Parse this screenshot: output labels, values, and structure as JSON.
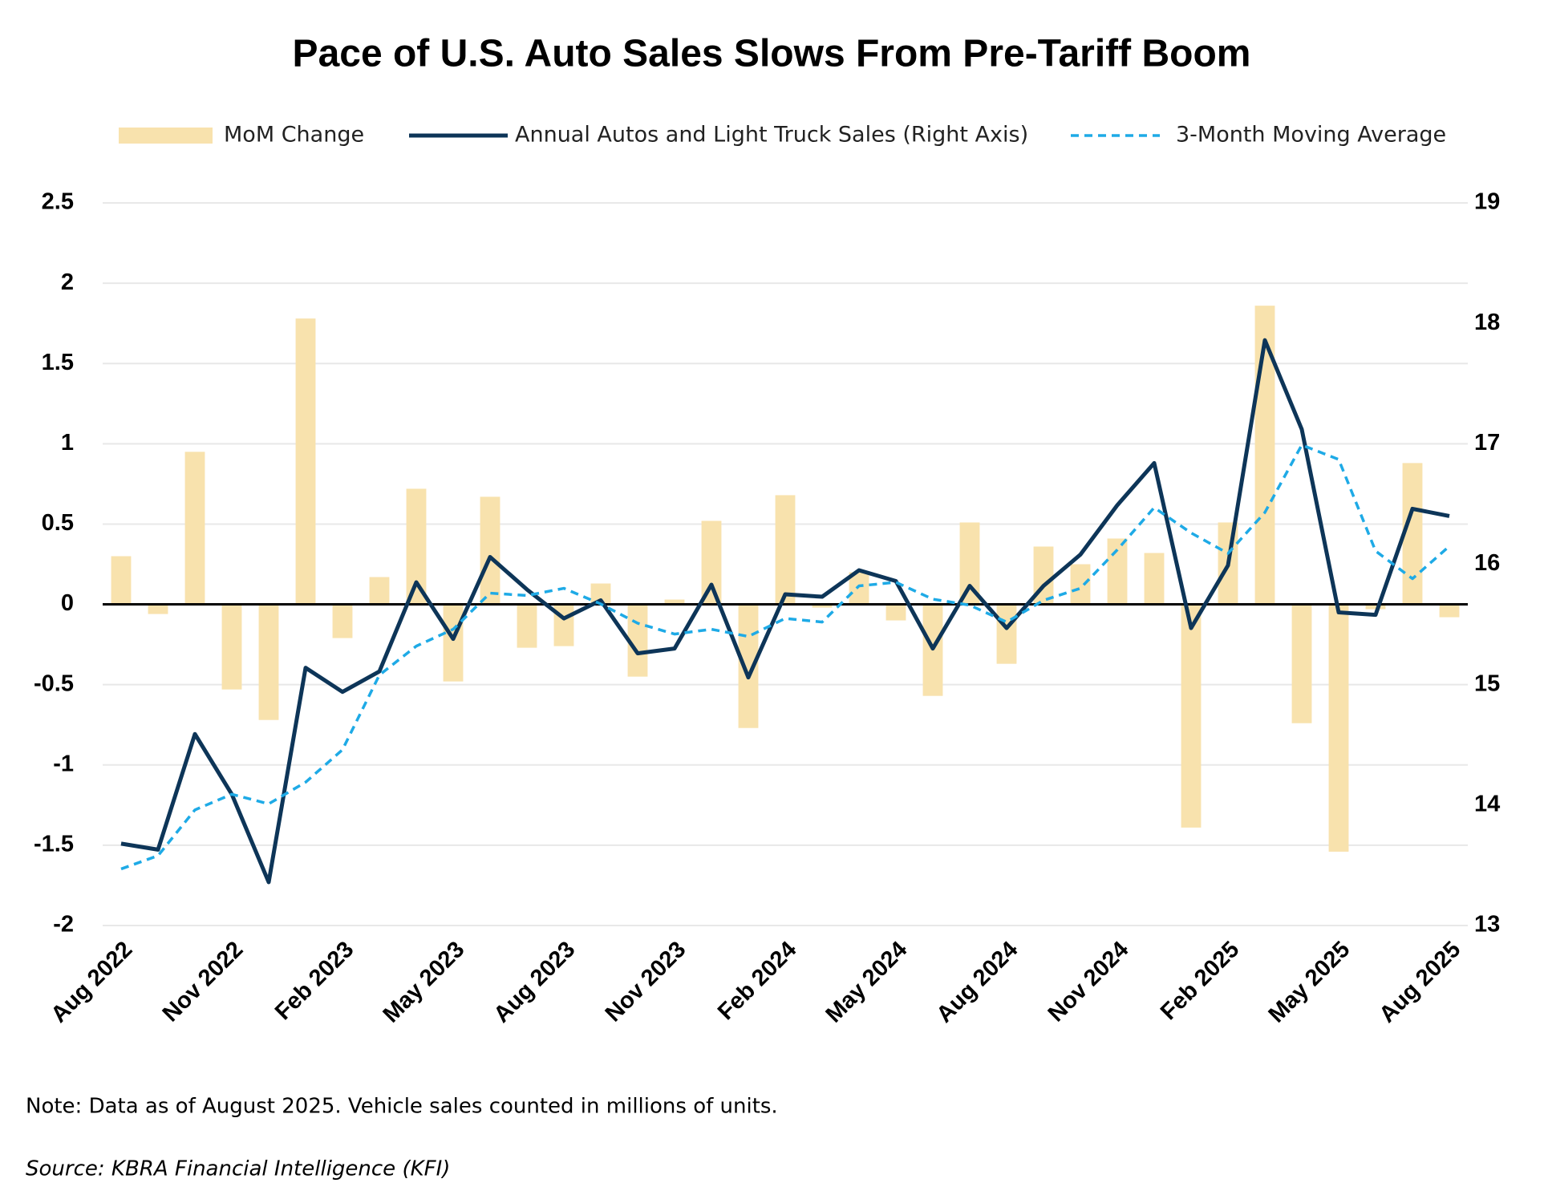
{
  "chart_data": {
    "type": "combo",
    "title": "Pace of U.S. Auto Sales Slows From Pre-Tariff Boom",
    "note": "Note: Data as of August 2025. Vehicle sales counted in millions of units.",
    "source": "Source: KBRA Financial Intelligence (KFI)",
    "categories": [
      "Aug 2022",
      null,
      null,
      "Nov 2022",
      null,
      null,
      "Feb 2023",
      null,
      null,
      "May 2023",
      null,
      null,
      "Aug 2023",
      null,
      null,
      "Nov 2023",
      null,
      null,
      "Feb 2024",
      null,
      null,
      "May 2024",
      null,
      null,
      "Aug 2024",
      null,
      null,
      "Nov 2024",
      null,
      null,
      "Feb 2025",
      null,
      null,
      "May 2025",
      null,
      null,
      "Aug 2025"
    ],
    "series": [
      {
        "name": "MoM Change",
        "kind": "bar",
        "color": "#f8e2ad",
        "axis": "y",
        "values": [
          0.3,
          -0.06,
          0.95,
          -0.53,
          -0.72,
          1.78,
          -0.21,
          0.17,
          0.72,
          -0.48,
          0.67,
          -0.27,
          -0.26,
          0.13,
          -0.45,
          0.03,
          0.52,
          -0.77,
          0.68,
          -0.02,
          0.2,
          -0.1,
          -0.57,
          0.51,
          -0.37,
          0.36,
          0.25,
          0.41,
          0.32,
          -1.39,
          0.51,
          1.86,
          -0.74,
          -1.54,
          -0.03,
          0.88,
          -0.08
        ]
      },
      {
        "name": "Annual Autos and Light Truck Sales (Right Axis)",
        "kind": "line",
        "dashed": false,
        "color": "#0d3558",
        "axis": "y2",
        "values": [
          13.68,
          13.63,
          14.59,
          14.09,
          13.36,
          15.14,
          14.94,
          15.11,
          15.85,
          15.38,
          16.06,
          15.79,
          15.55,
          15.7,
          15.26,
          15.3,
          15.83,
          15.06,
          15.75,
          15.73,
          15.95,
          15.86,
          15.3,
          15.82,
          15.47,
          15.82,
          16.08,
          16.49,
          16.84,
          15.47,
          15.99,
          17.86,
          17.12,
          15.6,
          15.58,
          16.46,
          16.4
        ]
      },
      {
        "name": "3-Month Moving Average",
        "kind": "line",
        "dashed": true,
        "color": "#1eaae6",
        "axis": "y2",
        "values": [
          13.47,
          13.58,
          13.96,
          14.09,
          14.01,
          14.19,
          14.46,
          15.08,
          15.32,
          15.46,
          15.76,
          15.74,
          15.8,
          15.67,
          15.51,
          15.42,
          15.46,
          15.4,
          15.55,
          15.52,
          15.82,
          15.85,
          15.71,
          15.66,
          15.52,
          15.7,
          15.8,
          16.12,
          16.47,
          16.26,
          16.09,
          16.43,
          16.99,
          16.87,
          16.11,
          15.88,
          16.15
        ]
      }
    ],
    "ylim": [
      -2,
      2.5
    ],
    "yticks": [
      -2,
      -1.5,
      -1,
      -0.5,
      0,
      0.5,
      1,
      1.5,
      2,
      2.5
    ],
    "y2lim": [
      13,
      19
    ],
    "y2ticks": [
      13,
      14,
      15,
      16,
      17,
      18,
      19
    ],
    "grid": true,
    "legend": "top"
  }
}
